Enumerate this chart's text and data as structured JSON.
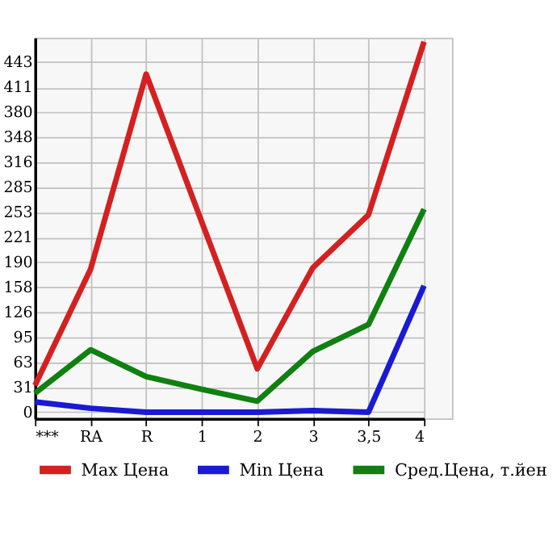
{
  "chart_data": {
    "type": "line",
    "categories": [
      "***",
      "RA",
      "R",
      "1",
      "2",
      "3",
      "3,5",
      "4"
    ],
    "series": [
      {
        "name": "Max Цена",
        "color": "#d42020",
        "values": [
          34,
          181,
          428,
          241,
          55,
          183,
          250,
          469
        ]
      },
      {
        "name": "Min Цена",
        "color": "#1a1ad4",
        "values": [
          13,
          5,
          0,
          0,
          0,
          2,
          0,
          160
        ]
      },
      {
        "name": "Сред.Цена, т.йен",
        "color": "#108010",
        "values": [
          24,
          79,
          45,
          29,
          14,
          77,
          111,
          257
        ]
      }
    ],
    "ylim": [
      -8,
      474
    ],
    "yticks": [
      0,
      31,
      63,
      95,
      126,
      158,
      190,
      221,
      253,
      285,
      316,
      348,
      380,
      411,
      443
    ],
    "grid": true,
    "legend": "bottom",
    "marker": "none",
    "line_style": "solid"
  }
}
